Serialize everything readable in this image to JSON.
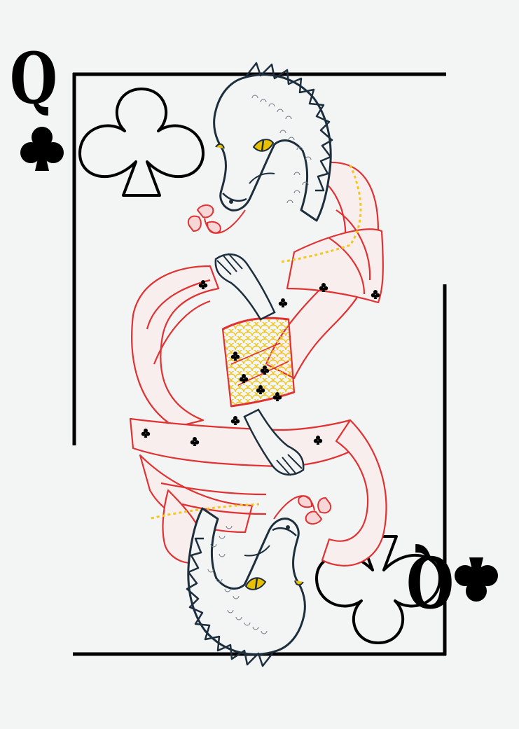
{
  "card": {
    "rank": "Q",
    "suit": "clubs",
    "suit_icon": "club-icon",
    "figure": "dragon-queen-illustration",
    "colors": {
      "background": "#f3f4f4",
      "ink": "#000000",
      "line_art": "#1d2e3c",
      "robe": "#e03232",
      "scales": "#f2c81e",
      "eye": "#e8c000"
    }
  }
}
